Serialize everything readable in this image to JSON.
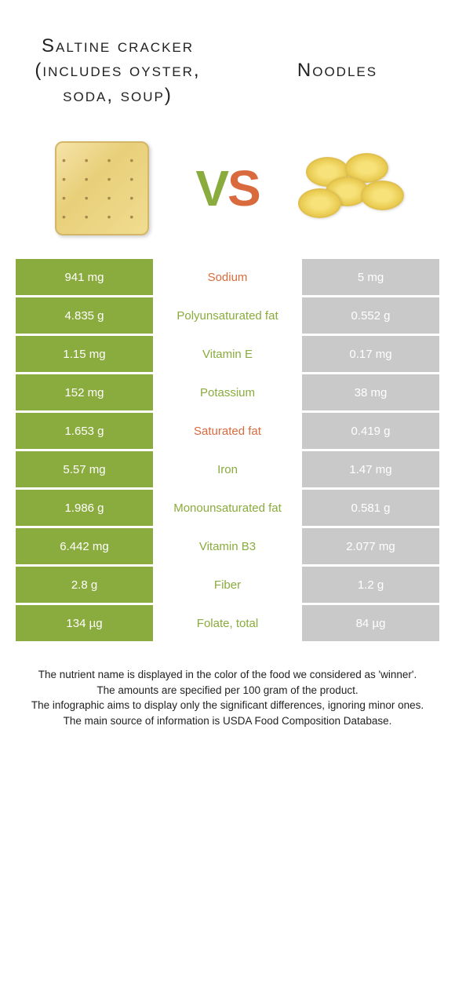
{
  "colors": {
    "left_bg": "#8aab3d",
    "right_bg": "#c9c9c9",
    "left_text": "#8aab3d",
    "right_text": "#d96a3e",
    "cell_text": "#ffffff"
  },
  "header": {
    "left_title": "Saltine cracker (includes oyster, soda, soup)",
    "right_title": "Noodles"
  },
  "vs": {
    "v": "V",
    "s": "S"
  },
  "nutrients": [
    {
      "name": "Sodium",
      "left": "941 mg",
      "right": "5 mg",
      "winner": "right"
    },
    {
      "name": "Polyunsaturated fat",
      "left": "4.835 g",
      "right": "0.552 g",
      "winner": "left"
    },
    {
      "name": "Vitamin E",
      "left": "1.15 mg",
      "right": "0.17 mg",
      "winner": "left"
    },
    {
      "name": "Potassium",
      "left": "152 mg",
      "right": "38 mg",
      "winner": "left"
    },
    {
      "name": "Saturated fat",
      "left": "1.653 g",
      "right": "0.419 g",
      "winner": "right"
    },
    {
      "name": "Iron",
      "left": "5.57 mg",
      "right": "1.47 mg",
      "winner": "left"
    },
    {
      "name": "Monounsaturated fat",
      "left": "1.986 g",
      "right": "0.581 g",
      "winner": "left"
    },
    {
      "name": "Vitamin B3",
      "left": "6.442 mg",
      "right": "2.077 mg",
      "winner": "left"
    },
    {
      "name": "Fiber",
      "left": "2.8 g",
      "right": "1.2 g",
      "winner": "left"
    },
    {
      "name": "Folate, total",
      "left": "134 µg",
      "right": "84 µg",
      "winner": "left"
    }
  ],
  "footer": {
    "line1": "The nutrient name is displayed in the color of the food we considered as 'winner'.",
    "line2": "The amounts are specified per 100 gram of the product.",
    "line3": "The infographic aims to display only the significant differences, ignoring minor ones.",
    "line4": "The main source of information is USDA Food Composition Database."
  }
}
